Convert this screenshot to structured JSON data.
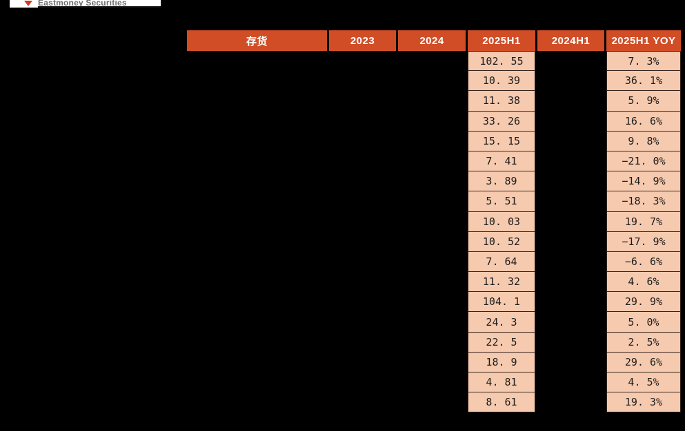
{
  "logo": {
    "text": "Eastmoney Securities",
    "arrow_icon": "red-arrow",
    "text_color": "#6d6d6d",
    "arrow_color": "#cf3b27",
    "strip_bg": "#ffffff"
  },
  "table": {
    "header": [
      "存货",
      "2023",
      "2024",
      "2025H1",
      "2024H1",
      "2025H1 YOY"
    ],
    "highlight_columns": [
      3,
      5
    ],
    "rows": [
      [
        "102. 55",
        "7. 3%"
      ],
      [
        "10. 39",
        "36. 1%"
      ],
      [
        "11. 38",
        "5. 9%"
      ],
      [
        "33. 26",
        "16. 6%"
      ],
      [
        "15. 15",
        "9. 8%"
      ],
      [
        "7. 41",
        "−21. 0%"
      ],
      [
        "3. 89",
        "−14. 9%"
      ],
      [
        "5. 51",
        "−18. 3%"
      ],
      [
        "10. 03",
        "19. 7%"
      ],
      [
        "10. 52",
        "−17. 9%"
      ],
      [
        "7. 64",
        "−6. 6%"
      ],
      [
        "11. 32",
        "4. 6%"
      ],
      [
        "104. 1",
        "29. 9%"
      ],
      [
        "24. 3",
        "5. 0%"
      ],
      [
        "22. 5",
        "2. 5%"
      ],
      [
        "18. 9",
        "29. 6%"
      ],
      [
        "4. 81",
        "4. 5%"
      ],
      [
        "8. 61",
        "19. 3%"
      ]
    ]
  },
  "chart_data": {
    "type": "table",
    "title": "存货",
    "columns": [
      "存货",
      "2023",
      "2024",
      "2025H1",
      "2024H1",
      "2025H1 YOY"
    ],
    "visible_series": [
      {
        "name": "2025H1",
        "values": [
          102.55,
          10.39,
          11.38,
          33.26,
          15.15,
          7.41,
          3.89,
          5.51,
          10.03,
          10.52,
          7.64,
          11.32,
          104.1,
          24.3,
          22.5,
          18.9,
          4.81,
          8.61
        ]
      },
      {
        "name": "2025H1 YOY (%)",
        "values": [
          7.3,
          36.1,
          5.9,
          16.6,
          9.8,
          -21.0,
          -14.9,
          -18.3,
          19.7,
          -17.9,
          -6.6,
          4.6,
          29.9,
          5.0,
          2.5,
          29.6,
          4.5,
          19.3
        ]
      }
    ]
  },
  "colors": {
    "background": "#000000",
    "header_bg": "#d14d26",
    "header_text": "#ffffff",
    "highlight_bg": "#f6caaf",
    "highlight_border": "#33211a",
    "value_text": "#1c1c1c"
  }
}
